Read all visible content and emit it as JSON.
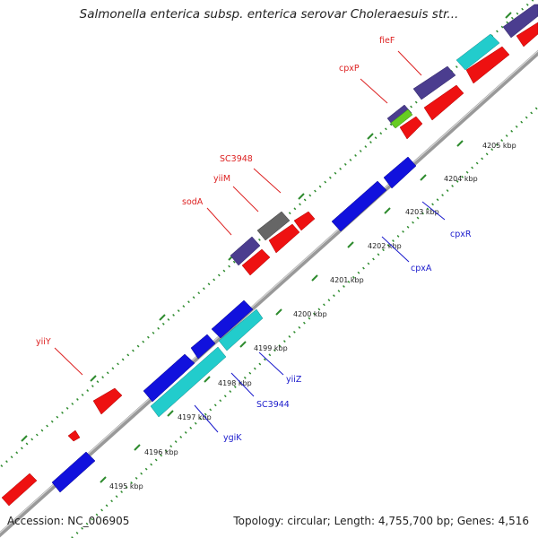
{
  "title": "Salmonella enterica subsp. enterica serovar Choleraesuis str...",
  "footer": {
    "accession": "Accession: NC_006905",
    "summary": "Topology: circular; Length: 4,755,700 bp; Genes: 4,516"
  },
  "colors": {
    "backbone": "#888888",
    "tick": "#2e8b2e",
    "forward_gene": "#ee1111",
    "reverse_gene": "#1111dd",
    "rrna_like": "#22cccc",
    "dark_gene": "#4b3d8f",
    "other_gene": "#666666",
    "special_gene": "#66cc22",
    "label_red": "#dd2222",
    "label_blue": "#1a1acc"
  },
  "ticks": [
    "4195 kbp",
    "4196 kbp",
    "4197 kbp",
    "4198 kbp",
    "4199 kbp",
    "4200 kbp",
    "4201 kbp",
    "4202 kbp",
    "4203 kbp",
    "4204 kbp",
    "4205 kbp"
  ],
  "gene_labels": {
    "fieF": "fieF",
    "cpxP": "cpxP",
    "SC3948": "SC3948",
    "yiiM": "yiiM",
    "sodA": "sodA",
    "yiiY": "yiiY",
    "cpxR": "cpxR",
    "cpxA": "cpxA",
    "yiiZ": "yiiZ",
    "SC3944": "SC3944",
    "ygiK": "ygiK"
  }
}
